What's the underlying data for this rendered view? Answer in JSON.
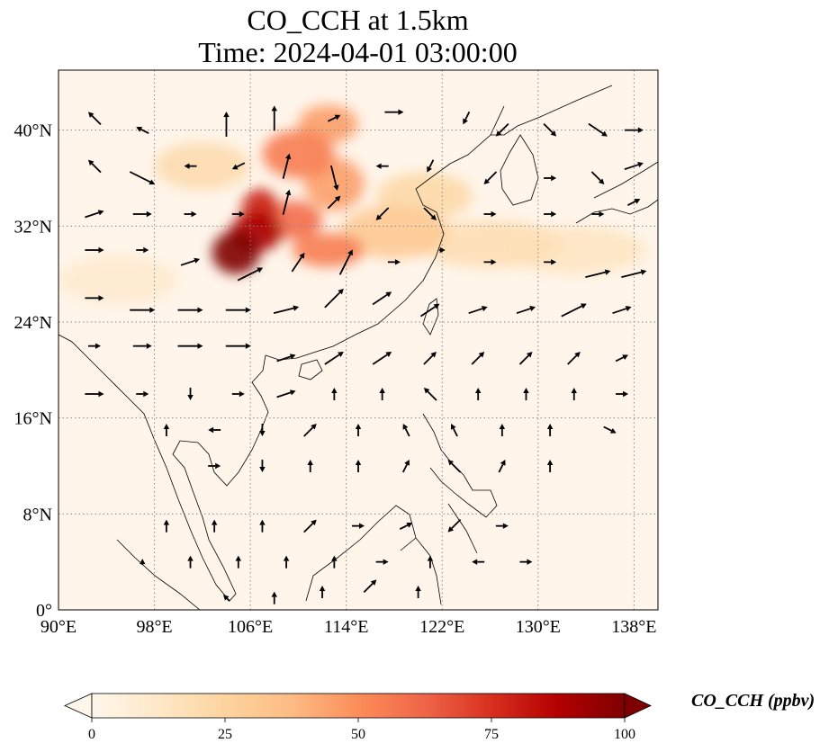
{
  "figure": {
    "title_line1": "CO_CCH at 1.5km",
    "title_line2": "Time: 2024-04-01 03:00:00"
  },
  "chart_data": {
    "type": "heatmap",
    "variable": "CO_CCH",
    "title": "CO_CCH at 1.5km",
    "subtitle": "Time: 2024-04-01 03:00:00",
    "xlim": [
      90,
      140
    ],
    "ylim": [
      0,
      45
    ],
    "x_ticks": [
      90,
      98,
      106,
      114,
      122,
      130,
      138
    ],
    "x_tick_labels": [
      "90°E",
      "98°E",
      "106°E",
      "114°E",
      "122°E",
      "130°E",
      "138°E"
    ],
    "y_ticks": [
      0,
      8,
      16,
      24,
      32,
      40
    ],
    "y_tick_labels": [
      "0°",
      "8°N",
      "16°N",
      "24°N",
      "32°N",
      "40°N"
    ],
    "grid": "dotted",
    "colormap": "OrRd",
    "colormap_colors": [
      "#fff7ec",
      "#fee8c8",
      "#fdd49e",
      "#fdbb84",
      "#fc8d59",
      "#ef6548",
      "#d7301f",
      "#b30000",
      "#7f0000"
    ],
    "colorbar": {
      "orientation": "horizontal",
      "extend": "both",
      "ticks": [
        0,
        25,
        50,
        75,
        100
      ],
      "tick_labels": [
        "0",
        "25",
        "50",
        "75",
        "100"
      ],
      "label": "CO_CCH (ppbv)"
    },
    "plumes": [
      {
        "lon": 104.8,
        "lat": 29.8,
        "value": 100,
        "rlon": 2.0,
        "rlat": 1.8
      },
      {
        "lon": 106.5,
        "lat": 31.5,
        "value": 90,
        "rlon": 2.2,
        "rlat": 1.6
      },
      {
        "lon": 106.8,
        "lat": 33.5,
        "value": 80,
        "rlon": 1.5,
        "rlat": 1.6
      },
      {
        "lon": 109.5,
        "lat": 32.5,
        "value": 60,
        "rlon": 2.5,
        "rlat": 1.6
      },
      {
        "lon": 112.5,
        "lat": 30.0,
        "value": 55,
        "rlon": 3.0,
        "rlat": 1.4
      },
      {
        "lon": 110.0,
        "lat": 38.0,
        "value": 55,
        "rlon": 3.0,
        "rlat": 2.0
      },
      {
        "lon": 112.5,
        "lat": 40.5,
        "value": 45,
        "rlon": 2.5,
        "rlat": 1.6
      },
      {
        "lon": 113.0,
        "lat": 35.5,
        "value": 45,
        "rlon": 2.5,
        "rlat": 2.2
      },
      {
        "lon": 118.0,
        "lat": 31.5,
        "value": 30,
        "rlon": 4.5,
        "rlat": 2.2
      },
      {
        "lon": 120.5,
        "lat": 34.5,
        "value": 22,
        "rlon": 4.0,
        "rlat": 2.0
      },
      {
        "lon": 102.0,
        "lat": 37.0,
        "value": 20,
        "rlon": 4.0,
        "rlat": 2.0
      },
      {
        "lon": 126.0,
        "lat": 30.5,
        "value": 18,
        "rlon": 6.0,
        "rlat": 2.0
      },
      {
        "lon": 133.0,
        "lat": 30.0,
        "value": 14,
        "rlon": 6.0,
        "rlat": 2.0
      },
      {
        "lon": 95.0,
        "lat": 27.5,
        "value": 10,
        "rlon": 5.0,
        "rlat": 2.0
      }
    ],
    "wind_vectors": [
      [
        93,
        41,
        -1,
        1
      ],
      [
        97,
        40,
        -1,
        0.5
      ],
      [
        104,
        40.5,
        0,
        2
      ],
      [
        108,
        41,
        0,
        2
      ],
      [
        113,
        41,
        1,
        0.5
      ],
      [
        118,
        41.5,
        1.5,
        0
      ],
      [
        124,
        41,
        -0.5,
        -1
      ],
      [
        127,
        40,
        -1,
        -1
      ],
      [
        131,
        40,
        1,
        -1
      ],
      [
        135,
        40,
        1.5,
        -1
      ],
      [
        138,
        40,
        1.5,
        0
      ],
      [
        93,
        37,
        -1,
        1
      ],
      [
        97,
        36,
        2,
        -1
      ],
      [
        101,
        37,
        -1,
        0
      ],
      [
        105,
        37,
        -1,
        -0.5
      ],
      [
        109,
        37,
        0.5,
        2
      ],
      [
        113,
        36,
        0.5,
        -2
      ],
      [
        117,
        37,
        -1,
        0
      ],
      [
        121,
        37,
        -0.5,
        -1
      ],
      [
        126,
        36,
        -1,
        -1
      ],
      [
        131,
        36,
        1,
        0
      ],
      [
        135,
        36,
        1,
        -1
      ],
      [
        138,
        37,
        1.5,
        0.5
      ],
      [
        93,
        33,
        1.5,
        0.5
      ],
      [
        97,
        33,
        1.5,
        0
      ],
      [
        101,
        33,
        1,
        0
      ],
      [
        105,
        33,
        1,
        0
      ],
      [
        109,
        34,
        0.5,
        2
      ],
      [
        113,
        34,
        1,
        1
      ],
      [
        117,
        33,
        -1,
        -1
      ],
      [
        121,
        33,
        1,
        -1
      ],
      [
        126,
        33,
        1,
        0
      ],
      [
        131,
        33,
        1,
        0
      ],
      [
        135,
        33,
        1,
        0
      ],
      [
        138,
        34,
        1,
        0.5
      ],
      [
        93,
        30,
        1.5,
        0
      ],
      [
        97,
        30,
        1,
        0
      ],
      [
        101,
        29,
        1.5,
        0.5
      ],
      [
        106,
        28,
        2,
        1
      ],
      [
        110,
        29,
        1,
        1.5
      ],
      [
        114,
        29,
        1,
        2
      ],
      [
        118,
        29,
        1,
        0
      ],
      [
        122,
        30,
        0.5,
        0
      ],
      [
        126,
        29,
        1,
        0
      ],
      [
        131,
        29,
        1,
        0
      ],
      [
        135,
        28,
        2,
        0.5
      ],
      [
        138,
        28,
        2,
        0.5
      ],
      [
        93,
        26,
        1.5,
        0
      ],
      [
        97,
        25,
        2,
        0
      ],
      [
        101,
        25,
        2,
        0
      ],
      [
        105,
        25,
        2,
        0
      ],
      [
        109,
        25,
        2,
        0.5
      ],
      [
        113,
        26,
        1.5,
        1.5
      ],
      [
        117,
        26,
        1.5,
        1
      ],
      [
        121,
        25,
        1.5,
        1
      ],
      [
        125,
        25,
        1.5,
        0.5
      ],
      [
        129,
        25,
        1.5,
        0.5
      ],
      [
        133,
        25,
        2,
        1
      ],
      [
        137,
        25,
        1.5,
        0.5
      ],
      [
        93,
        22,
        1,
        0
      ],
      [
        97,
        22,
        1.5,
        0
      ],
      [
        101,
        22,
        2,
        0
      ],
      [
        105,
        22,
        2,
        0
      ],
      [
        109,
        21,
        1.5,
        0.5
      ],
      [
        113,
        21,
        1.5,
        1
      ],
      [
        117,
        21,
        1.5,
        1
      ],
      [
        121,
        21,
        1,
        1
      ],
      [
        125,
        21,
        1,
        1
      ],
      [
        129,
        21,
        1,
        1
      ],
      [
        133,
        21,
        1,
        1
      ],
      [
        137,
        21,
        1,
        0.5
      ],
      [
        93,
        18,
        1.5,
        0
      ],
      [
        97,
        18,
        1,
        0
      ],
      [
        101,
        18,
        0,
        -1
      ],
      [
        105,
        18,
        1,
        0
      ],
      [
        109,
        18,
        1.5,
        0.5
      ],
      [
        113,
        18,
        0,
        1
      ],
      [
        117,
        18,
        0,
        1
      ],
      [
        121,
        18,
        -1,
        1
      ],
      [
        125,
        18,
        0,
        1
      ],
      [
        129,
        18,
        0,
        1
      ],
      [
        133,
        18,
        0,
        1
      ],
      [
        137,
        18,
        1,
        0
      ],
      [
        99,
        15,
        0,
        1
      ],
      [
        103,
        15,
        -1,
        0
      ],
      [
        107,
        15,
        0,
        -1
      ],
      [
        111,
        15,
        1,
        1
      ],
      [
        115,
        15,
        0,
        1
      ],
      [
        119,
        15,
        -0.5,
        1
      ],
      [
        123,
        15,
        -0.5,
        1
      ],
      [
        127,
        15,
        0,
        1
      ],
      [
        131,
        15,
        0,
        1
      ],
      [
        136,
        15,
        1,
        -0.5
      ],
      [
        103,
        12,
        1,
        0
      ],
      [
        107,
        12,
        0,
        -1
      ],
      [
        111,
        12,
        0,
        1
      ],
      [
        115,
        12,
        0,
        1
      ],
      [
        119,
        12,
        0.5,
        1
      ],
      [
        123,
        12,
        -1,
        1
      ],
      [
        127,
        12,
        0.5,
        1
      ],
      [
        131,
        12,
        0,
        1
      ],
      [
        99,
        7,
        0,
        1
      ],
      [
        103,
        7,
        0,
        1
      ],
      [
        107,
        7,
        0,
        1
      ],
      [
        111,
        7,
        1,
        1
      ],
      [
        115,
        7,
        1,
        0
      ],
      [
        119,
        7,
        1,
        0.5
      ],
      [
        123,
        7,
        -1,
        -1
      ],
      [
        127,
        7,
        1,
        0
      ],
      [
        97,
        4,
        0,
        0.5
      ],
      [
        101,
        4,
        0,
        1
      ],
      [
        105,
        4,
        0,
        1
      ],
      [
        109,
        4,
        0,
        1
      ],
      [
        113,
        4,
        0,
        1
      ],
      [
        117,
        4,
        1,
        0
      ],
      [
        121,
        4,
        0,
        1
      ],
      [
        125,
        4,
        -1,
        0
      ],
      [
        129,
        4,
        1,
        0
      ],
      [
        104,
        1,
        -0.5,
        0.5
      ],
      [
        108,
        1,
        0,
        1
      ],
      [
        112,
        1.5,
        0,
        1
      ],
      [
        116,
        2,
        1,
        1
      ],
      [
        120,
        1.5,
        0,
        1
      ]
    ]
  }
}
